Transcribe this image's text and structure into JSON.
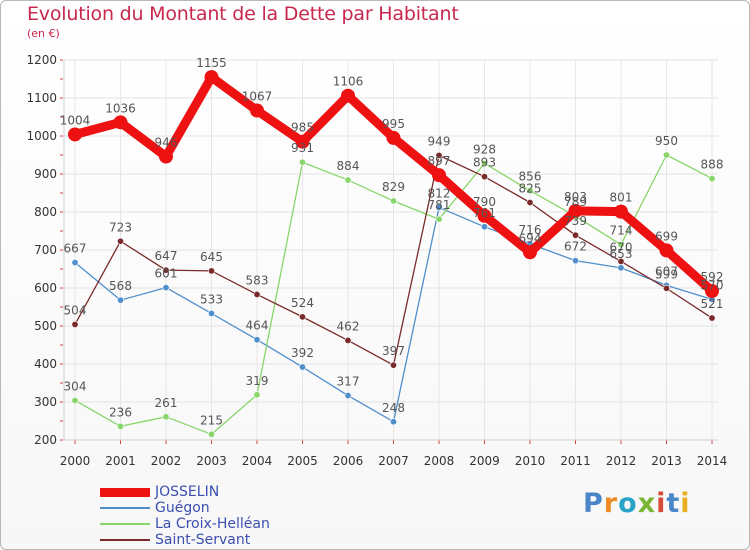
{
  "title": "Evolution du Montant de la Dette par Habitant",
  "subtitle": "(en €)",
  "logo_text": "Proxiti",
  "logo_colors": [
    "#4a86c8",
    "#f08a24",
    "#2aa3c8",
    "#7ab634",
    "#d84a3a",
    "#4a86c8",
    "#e8b020"
  ],
  "chart_data": {
    "type": "line",
    "title": "Evolution du Montant de la Dette par Habitant",
    "subtitle": "(en €)",
    "xlabel": "",
    "ylabel": "",
    "ylim": [
      200,
      1200
    ],
    "yticks": [
      200,
      300,
      400,
      500,
      600,
      700,
      800,
      900,
      1000,
      1100,
      1200
    ],
    "categories": [
      "2000",
      "2001",
      "2002",
      "2003",
      "2004",
      "2005",
      "2006",
      "2007",
      "2008",
      "2009",
      "2010",
      "2011",
      "2012",
      "2013",
      "2014"
    ],
    "grid": true,
    "legend_position": "bottom-left",
    "series": [
      {
        "name": "Guégon",
        "color": "#4f8fcc",
        "values": [
          667,
          568,
          601,
          533,
          464,
          392,
          317,
          248,
          812,
          761,
          716,
          672,
          653,
          607,
          570
        ],
        "labels": [
          "667",
          "568",
          "601",
          "533",
          "464",
          "392",
          "317",
          "248",
          "812",
          "761",
          "716",
          "672",
          "653",
          "607",
          "570"
        ]
      },
      {
        "name": "La Croix-Helléan",
        "color": "#88d66a",
        "values": [
          304,
          236,
          261,
          215,
          319,
          931,
          884,
          829,
          781,
          928,
          856,
          789,
          714,
          950,
          888
        ],
        "labels": [
          "304",
          "236",
          "261",
          "215",
          "319",
          "931",
          "884",
          "829",
          "781",
          "928",
          "856",
          "789",
          "714",
          "950",
          "888"
        ]
      },
      {
        "name": "Saint-Servant",
        "color": "#7a2a2a",
        "values": [
          504,
          723,
          647,
          645,
          583,
          524,
          462,
          397,
          949,
          893,
          825,
          739,
          670,
          599,
          521
        ],
        "labels": [
          "504",
          "723",
          "647",
          "645",
          "583",
          "524",
          "462",
          "397",
          "949",
          "893",
          "825",
          "739",
          "670",
          "599",
          "521"
        ]
      },
      {
        "name": "JOSSELIN",
        "color": "#ee1111",
        "values": [
          1004,
          1036,
          946,
          1155,
          1067,
          985,
          1106,
          995,
          897,
          790,
          694,
          803,
          801,
          699,
          592
        ],
        "labels": [
          "1004",
          "1036",
          "946",
          "1155",
          "1067",
          "985",
          "1106",
          "995",
          "897",
          "790",
          "694",
          "803",
          "801",
          "699",
          "592"
        ]
      }
    ],
    "legend_order": [
      "JOSSELIN",
      "Guégon",
      "La Croix-Helléan",
      "Saint-Servant"
    ]
  }
}
